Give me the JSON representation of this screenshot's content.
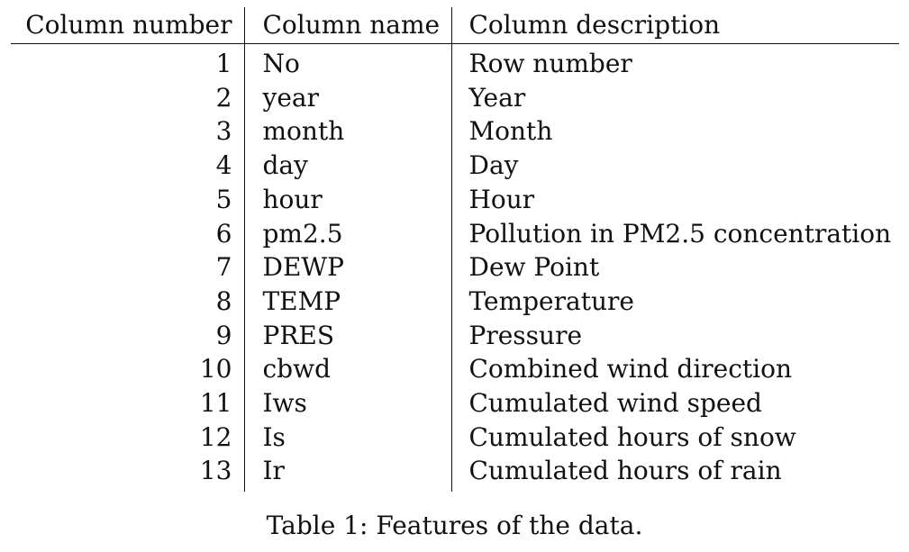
{
  "table": {
    "headers": {
      "number": "Column number",
      "name": "Column name",
      "description": "Column description"
    },
    "rows": [
      {
        "number": "1",
        "name": "No",
        "description": "Row number"
      },
      {
        "number": "2",
        "name": "year",
        "description": "Year"
      },
      {
        "number": "3",
        "name": "month",
        "description": "Month"
      },
      {
        "number": "4",
        "name": "day",
        "description": "Day"
      },
      {
        "number": "5",
        "name": "hour",
        "description": "Hour"
      },
      {
        "number": "6",
        "name": "pm2.5",
        "description": "Pollution in PM2.5 concentration"
      },
      {
        "number": "7",
        "name": "DEWP",
        "description": "Dew Point"
      },
      {
        "number": "8",
        "name": "TEMP",
        "description": "Temperature"
      },
      {
        "number": "9",
        "name": "PRES",
        "description": "Pressure"
      },
      {
        "number": "10",
        "name": "cbwd",
        "description": "Combined wind direction"
      },
      {
        "number": "11",
        "name": "Iws",
        "description": "Cumulated wind speed"
      },
      {
        "number": "12",
        "name": "Is",
        "description": "Cumulated hours of snow"
      },
      {
        "number": "13",
        "name": "Ir",
        "description": "Cumulated hours of rain"
      }
    ]
  },
  "caption": "Table 1: Features of the data."
}
